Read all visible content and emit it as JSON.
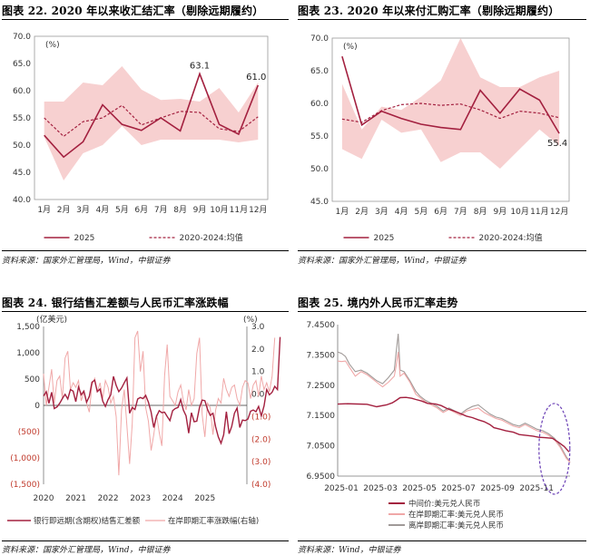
{
  "panels": [
    {
      "title": "图表 22. 2020 年以来收汇结汇率（剔除远期履约）",
      "source": "资料来源：国家外汇管理局，Wind，中银证券"
    },
    {
      "title": "图表 23. 2020 年以来付汇购汇率（剔除远期履约）",
      "source": "资料来源：国家外汇管理局，Wind，中银证券"
    },
    {
      "title": "图表 24. 银行结售汇差额与人民币汇率涨跌幅",
      "source": "资料来源：国家外汇管理局，Wind，中银证券"
    },
    {
      "title": "图表 25. 境内外人民币汇率走势",
      "source": "资料来源：Wind，中银证券"
    }
  ],
  "colors": {
    "line2025": "#a3203f",
    "avg": "#a3203f",
    "band": "#f7d0d0",
    "pink": "#f0a8a8",
    "grey": "#a09a98",
    "frame": "#999999"
  },
  "chart_data": [
    {
      "type": "line",
      "unit": "(%)",
      "categories": [
        "1月",
        "2月",
        "3月",
        "4月",
        "5月",
        "6月",
        "7月",
        "8月",
        "9月",
        "10月",
        "11月",
        "12月"
      ],
      "ylim": [
        40,
        70
      ],
      "yticks": [
        "40.0",
        "45.0",
        "50.0",
        "55.0",
        "60.0",
        "65.0",
        "70.0"
      ],
      "band_upper": [
        58.0,
        58.0,
        61.5,
        61.0,
        64.5,
        60.2,
        58.3,
        58.5,
        58.0,
        60.5,
        56.0,
        61.5
      ],
      "band_lower": [
        51.5,
        43.5,
        48.5,
        50.0,
        53.5,
        50.0,
        51.0,
        51.0,
        51.0,
        51.0,
        50.5,
        51.0
      ],
      "series": [
        {
          "name": "2025",
          "values": [
            51.8,
            47.8,
            50.6,
            57.4,
            53.8,
            52.7,
            55.0,
            52.6,
            63.1,
            53.8,
            52.0,
            61.0
          ]
        },
        {
          "name": "2020-2024:均值",
          "values": [
            55.0,
            51.6,
            54.3,
            55.0,
            57.3,
            53.7,
            55.0,
            56.2,
            56.0,
            53.0,
            52.5,
            55.2
          ]
        }
      ],
      "annotations": [
        {
          "label": "63.1",
          "x": "9月"
        },
        {
          "label": "61.0",
          "x": "12月"
        }
      ]
    },
    {
      "type": "line",
      "unit": "(%)",
      "categories": [
        "1月",
        "2月",
        "3月",
        "4月",
        "5月",
        "6月",
        "7月",
        "8月",
        "9月",
        "10月",
        "11月",
        "12月"
      ],
      "ylim": [
        45,
        70
      ],
      "yticks": [
        "45.0",
        "50.0",
        "55.0",
        "60.0",
        "65.0",
        "70.0"
      ],
      "band_upper": [
        63.0,
        56.0,
        59.5,
        59.0,
        61.0,
        63.5,
        70.0,
        64.0,
        62.5,
        62.5,
        64.0,
        65.0
      ],
      "band_lower": [
        53.0,
        51.5,
        57.5,
        55.5,
        56.0,
        51.0,
        52.5,
        52.5,
        50.0,
        53.0,
        56.0,
        53.5
      ],
      "series": [
        {
          "name": "2025",
          "values": [
            67.2,
            56.7,
            58.8,
            57.7,
            56.8,
            56.3,
            56.0,
            62.0,
            58.5,
            62.2,
            60.5,
            55.4
          ]
        },
        {
          "name": "2020-2024:均值",
          "values": [
            57.6,
            57.1,
            58.9,
            59.8,
            60.0,
            59.7,
            59.9,
            59.0,
            57.7,
            58.8,
            58.5,
            57.8
          ]
        }
      ],
      "annotations": [
        {
          "label": "55.4",
          "x": "12月"
        }
      ]
    },
    {
      "type": "line",
      "left_unit": "(亿美元)",
      "right_unit": "(%)",
      "ylim_left": [
        -1500,
        1500
      ],
      "ylim_right": [
        -4,
        3
      ],
      "yticks_left": [
        "1,500",
        "1,000",
        "500",
        "0",
        "(500)",
        "(1,000)",
        "(1,500)"
      ],
      "yticks_right": [
        "3.0",
        "2.0",
        "1.0",
        "0.0",
        "(1.0)",
        "(2.0)",
        "(3.0)",
        "(4.0)"
      ],
      "xticks": [
        "2020",
        "2021",
        "2022",
        "2023",
        "2024",
        "2025"
      ],
      "x_start": 2020,
      "x_step": 0.0833,
      "series": [
        {
          "name": "银行即远期(含期权)结售汇差额",
          "axis": "left",
          "values": [
            180,
            260,
            40,
            250,
            -60,
            -30,
            40,
            130,
            210,
            120,
            300,
            270,
            70,
            350,
            200,
            270,
            60,
            170,
            440,
            480,
            260,
            310,
            80,
            -20,
            110,
            200,
            550,
            380,
            260,
            330,
            430,
            520,
            -150,
            -40,
            -80,
            120,
            150,
            130,
            190,
            60,
            -130,
            -420,
            -210,
            -100,
            -140,
            -130,
            -210,
            -290,
            -100,
            -60,
            -40,
            110,
            -90,
            -200,
            -530,
            -140,
            -310,
            -300,
            -40,
            100,
            90,
            -80,
            -190,
            -150,
            -410,
            -600,
            -720,
            -560,
            -120,
            -540,
            -400,
            -150,
            -50,
            -420,
            -280,
            -290,
            -260,
            -110,
            -90,
            -120,
            -20,
            -200,
            -10,
            300,
            200,
            250,
            360,
            300,
            1300
          ]
        },
        {
          "name": "在岸即期汇率涨跌幅(右轴)",
          "axis": "right",
          "values": [
            0.9,
            -0.5,
            0.3,
            1.1,
            -0.4,
            0.6,
            0.8,
            -0.2,
            1.6,
            1.9,
            0.2,
            0.5,
            0.3,
            0.6,
            -0.3,
            0.1,
            -0.4,
            -0.8,
            0.4,
            0.7,
            0.1,
            0.5,
            -0.2,
            0.6,
            0.3,
            -0.4,
            -0.1,
            -1.0,
            -3.6,
            -0.7,
            0.2,
            -1.4,
            -3.1,
            -1.3,
            2.5,
            2.8,
            1.0,
            1.9,
            -0.6,
            -1.2,
            -2.5,
            -1.8,
            -0.9,
            -1.7,
            -2.3,
            0.8,
            2.2,
            -0.1,
            -0.3,
            -0.5,
            0.1,
            0.4,
            -0.3,
            -0.7,
            0.2,
            -0.5,
            -0.2,
            1.8,
            2.5,
            -0.9,
            -1.9,
            -0.4,
            -0.6,
            -1.8,
            -0.7,
            -0.2,
            -0.4,
            0.7,
            0.2,
            -0.1,
            0.3,
            0.4,
            -0.2,
            -0.5,
            0.3,
            0.6,
            0.5,
            -0.2,
            0.4,
            0.6,
            -0.1,
            0.8,
            0.2,
            0.5,
            0.1,
            0.8,
            2.5
          ]
        }
      ]
    },
    {
      "type": "line",
      "ylim": [
        6.95,
        7.45
      ],
      "yticks": [
        "7.4500",
        "7.3500",
        "7.2500",
        "7.1500",
        "7.0500",
        "6.9500"
      ],
      "xticks": [
        "2025-01",
        "2025-03",
        "2025-05",
        "2025-07",
        "2025-09",
        "2025-11"
      ],
      "x_months": [
        0,
        2,
        4,
        6,
        8,
        10
      ],
      "x_end": 11.9,
      "series": [
        {
          "name": "中间价:美元兑人民币",
          "x": [
            0,
            0.5,
            1.0,
            1.5,
            2.0,
            2.5,
            2.8,
            3.0,
            3.2,
            3.5,
            3.8,
            4.0,
            4.3,
            4.6,
            5.0,
            5.3,
            5.6,
            6.0,
            6.3,
            6.6,
            6.9,
            7.2,
            7.5,
            7.8,
            8.0,
            8.3,
            8.6,
            9.0,
            9.3,
            9.6,
            10.0,
            10.3,
            10.6,
            11.0,
            11.3,
            11.6,
            11.85
          ],
          "y": [
            7.1878,
            7.189,
            7.188,
            7.187,
            7.179,
            7.185,
            7.192,
            7.2,
            7.209,
            7.21,
            7.207,
            7.203,
            7.198,
            7.19,
            7.188,
            7.183,
            7.173,
            7.164,
            7.156,
            7.148,
            7.143,
            7.136,
            7.13,
            7.12,
            7.11,
            7.105,
            7.1,
            7.095,
            7.087,
            7.085,
            7.082,
            7.078,
            7.077,
            7.075,
            7.062,
            7.048,
            7.03
          ]
        },
        {
          "name": "在岸即期汇率:美元兑人民币",
          "x": [
            0,
            0.2,
            0.4,
            0.6,
            0.9,
            1.2,
            1.5,
            1.8,
            2.0,
            2.3,
            2.6,
            2.9,
            3.0,
            3.1,
            3.2,
            3.4,
            3.7,
            4.0,
            4.2,
            4.5,
            4.8,
            5.1,
            5.4,
            5.7,
            6.0,
            6.3,
            6.6,
            6.9,
            7.2,
            7.5,
            7.8,
            8.1,
            8.4,
            8.7,
            9.0,
            9.3,
            9.6,
            9.9,
            10.2,
            10.5,
            10.8,
            11.1,
            11.4,
            11.7,
            11.9
          ],
          "y": [
            7.33,
            7.328,
            7.33,
            7.31,
            7.28,
            7.295,
            7.285,
            7.27,
            7.26,
            7.245,
            7.26,
            7.28,
            7.315,
            7.36,
            7.28,
            7.29,
            7.26,
            7.22,
            7.21,
            7.195,
            7.185,
            7.175,
            7.16,
            7.17,
            7.16,
            7.15,
            7.165,
            7.17,
            7.175,
            7.16,
            7.15,
            7.14,
            7.135,
            7.125,
            7.115,
            7.11,
            7.12,
            7.11,
            7.1,
            7.095,
            7.085,
            7.07,
            7.045,
            7.01,
            6.995
          ]
        },
        {
          "name": "离岸即期汇率:美元兑人民币",
          "x": [
            0,
            0.2,
            0.4,
            0.6,
            0.9,
            1.2,
            1.5,
            1.8,
            2.0,
            2.3,
            2.6,
            2.9,
            3.0,
            3.1,
            3.2,
            3.4,
            3.7,
            4.0,
            4.2,
            4.5,
            4.8,
            5.1,
            5.4,
            5.7,
            6.0,
            6.3,
            6.6,
            6.9,
            7.2,
            7.5,
            7.8,
            8.1,
            8.4,
            8.7,
            9.0,
            9.3,
            9.6,
            9.9,
            10.2,
            10.5,
            10.8,
            11.1,
            11.4,
            11.7,
            11.9
          ],
          "y": [
            7.36,
            7.355,
            7.345,
            7.32,
            7.295,
            7.3,
            7.29,
            7.275,
            7.265,
            7.255,
            7.275,
            7.3,
            7.36,
            7.42,
            7.3,
            7.295,
            7.265,
            7.23,
            7.215,
            7.2,
            7.19,
            7.18,
            7.165,
            7.175,
            7.165,
            7.155,
            7.17,
            7.18,
            7.185,
            7.17,
            7.155,
            7.145,
            7.14,
            7.13,
            7.12,
            7.115,
            7.125,
            7.115,
            7.105,
            7.1,
            7.09,
            7.075,
            7.05,
            7.015,
            6.995
          ]
        }
      ]
    }
  ]
}
